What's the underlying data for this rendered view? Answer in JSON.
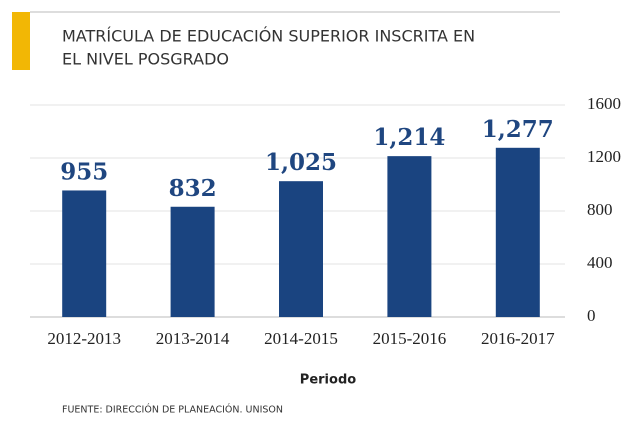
{
  "chart_data": {
    "type": "bar",
    "title": [
      "MATRÍCULA DE EDUCACIÓN SUPERIOR INSCRITA EN",
      "EL NIVEL POSGRADO"
    ],
    "categories": [
      "2012-2013",
      "2013-2014",
      "2014-2015",
      "2015-2016",
      "2016-2017"
    ],
    "values": [
      955,
      832,
      1025,
      1214,
      1277
    ],
    "value_labels": [
      "955",
      "832",
      "1,025",
      "1,214",
      "1,277"
    ],
    "color": "#1a4480",
    "ylim": [
      0,
      1600
    ],
    "yticks": [
      0,
      400,
      800,
      1200,
      1600
    ],
    "grid": true,
    "x_label": "Periodo",
    "source": "FUENTE: DIRECCIÓN DE PLANEACIÓN. UNISON"
  }
}
